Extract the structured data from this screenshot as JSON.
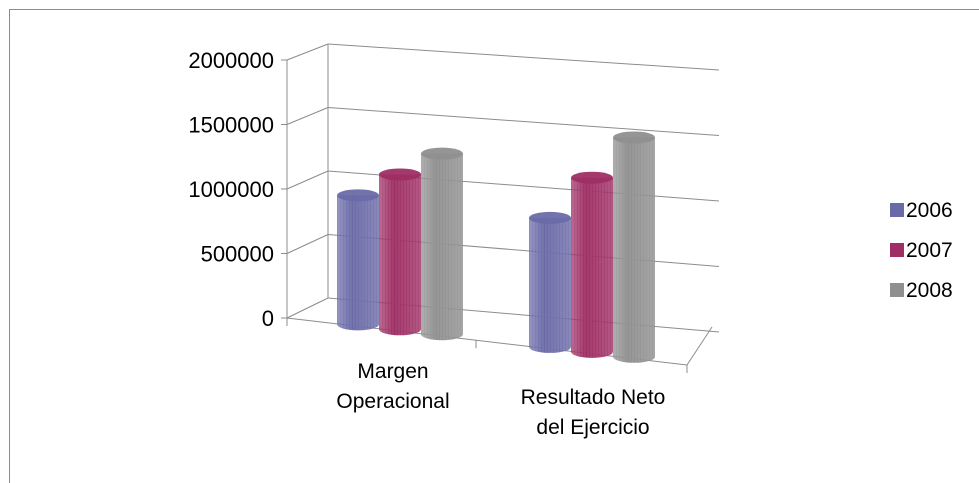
{
  "chart_data": {
    "type": "bar",
    "categories": [
      "Margen Operacional",
      "Resultado Neto del Ejercicio"
    ],
    "series": [
      {
        "name": "2006",
        "values": [
          1000000,
          1000000
        ],
        "color": "#6a6aa8"
      },
      {
        "name": "2007",
        "values": [
          1200000,
          1350000
        ],
        "color": "#9e2e64"
      },
      {
        "name": "2008",
        "values": [
          1400000,
          1700000
        ],
        "color": "#8f8f8f"
      }
    ],
    "ylim": [
      0,
      2000000
    ],
    "yticks": [
      "0",
      "500000",
      "1000000",
      "1500000",
      "2000000"
    ],
    "category_label_lines": [
      [
        "Margen",
        "Operacional"
      ],
      [
        "Resultado Neto",
        "del Ejercicio"
      ]
    ],
    "title": "",
    "xlabel": "",
    "ylabel": "",
    "grid": true,
    "legend_position": "right",
    "style": "3d-cylinder"
  }
}
